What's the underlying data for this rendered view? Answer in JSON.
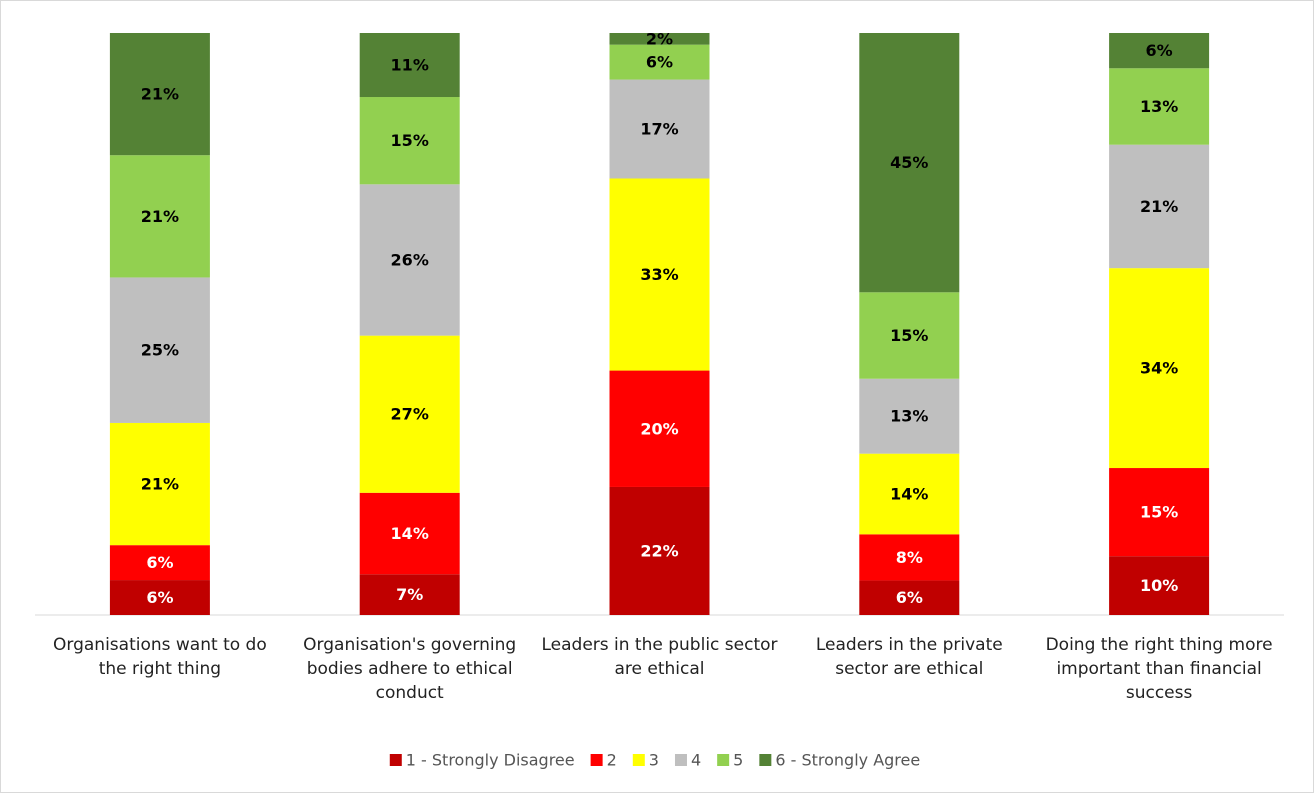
{
  "chart_data": {
    "type": "bar",
    "stacked": "percent",
    "categories": [
      "Organisations want to do the right thing",
      "Organisation's governing bodies adhere to ethical conduct",
      "Leaders in the public sector are ethical",
      "Leaders in the private sector are ethical",
      "Doing the right thing more important than financial success"
    ],
    "series": [
      {
        "name": "1 - Strongly Disagree",
        "color": "#c00000",
        "label_color": "#ffffff",
        "values": [
          6,
          7,
          22,
          6,
          10
        ],
        "value_labels": [
          "6%",
          "7%",
          "22%",
          "6%",
          "10%"
        ]
      },
      {
        "name": "2",
        "color": "#ff0000",
        "label_color": "#ffffff",
        "values": [
          6,
          14,
          20,
          8,
          15
        ],
        "value_labels": [
          "6%",
          "14%",
          "20%",
          "8%",
          "15%"
        ]
      },
      {
        "name": "3",
        "color": "#ffff00",
        "label_color": "#000000",
        "values": [
          21,
          27,
          33,
          14,
          34
        ],
        "value_labels": [
          "21%",
          "27%",
          "33%",
          "14%",
          "34%"
        ]
      },
      {
        "name": "4",
        "color": "#bfbfbf",
        "label_color": "#000000",
        "values": [
          25,
          26,
          17,
          13,
          21
        ],
        "value_labels": [
          "25%",
          "26%",
          "17%",
          "13%",
          "21%"
        ]
      },
      {
        "name": "5",
        "color": "#92d050",
        "label_color": "#000000",
        "values": [
          21,
          15,
          6,
          15,
          13
        ],
        "value_labels": [
          "21%",
          "15%",
          "6%",
          "15%",
          "13%"
        ]
      },
      {
        "name": "6 - Strongly Agree",
        "color": "#548235",
        "label_color": "#000000",
        "values": [
          21,
          11,
          2,
          45,
          6
        ],
        "value_labels": [
          "21%",
          "11%",
          "2%",
          "45%",
          "6%"
        ]
      }
    ],
    "legend": "bottom"
  }
}
